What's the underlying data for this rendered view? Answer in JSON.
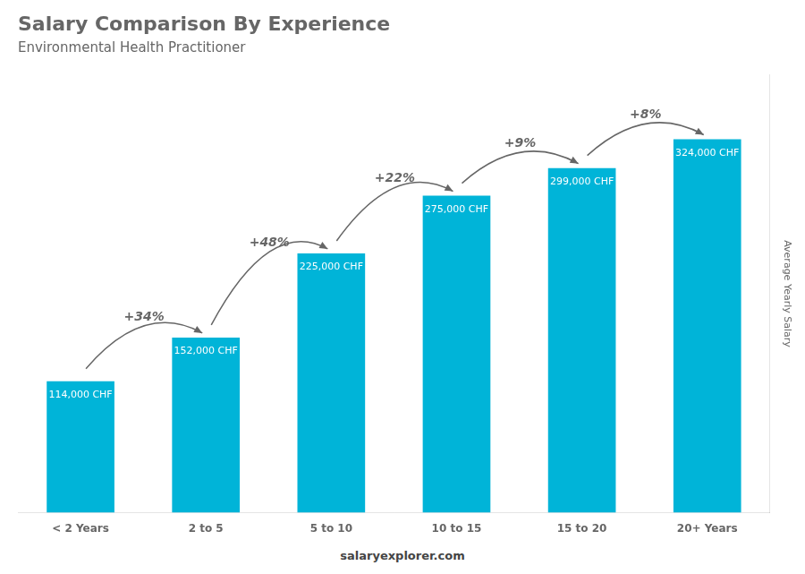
{
  "chart_data": {
    "type": "bar",
    "title": "Salary Comparison By Experience",
    "subtitle": "Environmental Health Practitioner",
    "categories": [
      "< 2 Years",
      "2 to 5",
      "5 to 10",
      "10 to 15",
      "15 to 20",
      "20+ Years"
    ],
    "values": [
      114000,
      152000,
      225000,
      275000,
      299000,
      324000
    ],
    "value_labels": [
      "114,000 CHF",
      "152,000 CHF",
      "225,000 CHF",
      "275,000 CHF",
      "299,000 CHF",
      "324,000 CHF"
    ],
    "data_labels": true,
    "annotations": [
      "+34%",
      "+48%",
      "+22%",
      "+9%",
      "+8%"
    ],
    "ylabel": "Average Yearly Salary",
    "footer": "salaryexplorer.com",
    "color": "#00b4d8",
    "ylim": [
      0,
      380000
    ],
    "grid": false,
    "tick_labels": "x"
  }
}
